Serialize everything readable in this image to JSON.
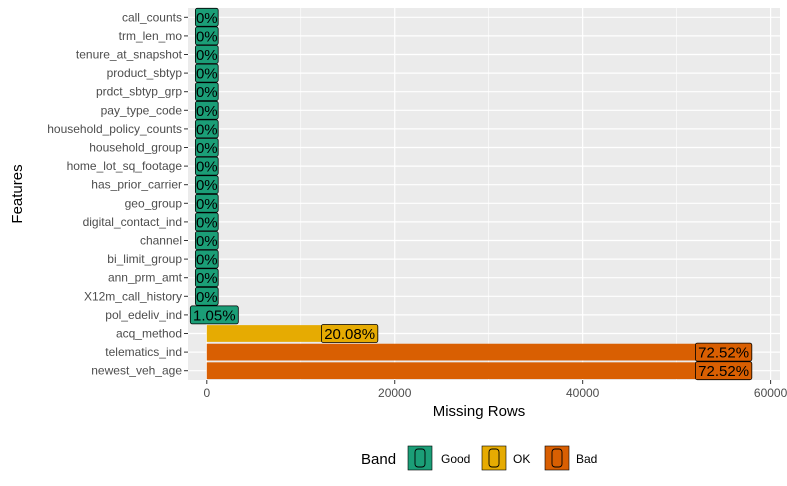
{
  "chart_data": {
    "type": "bar",
    "orientation": "horizontal",
    "xlabel": "Missing Rows",
    "ylabel": "Features",
    "xlim": [
      -2000,
      61000
    ],
    "x_ticks": [
      0,
      20000,
      40000,
      60000
    ],
    "x_tick_labels": [
      "0",
      "20000",
      "40000",
      "60000"
    ],
    "grid": true,
    "legend_position": "bottom",
    "legend_title": "Band",
    "bands": [
      {
        "name": "Good",
        "color": "#1B9E77"
      },
      {
        "name": "OK",
        "color": "#E6AB02"
      },
      {
        "name": "Bad",
        "color": "#D95F02"
      }
    ],
    "categories": [
      "call_counts",
      "trm_len_mo",
      "tenure_at_snapshot",
      "product_sbtyp",
      "prdct_sbtyp_grp",
      "pay_type_code",
      "household_policy_counts",
      "household_group",
      "home_lot_sq_footage",
      "has_prior_carrier",
      "geo_group",
      "digital_contact_ind",
      "channel",
      "bi_limit_group",
      "ann_prm_amt",
      "X12m_call_history",
      "pol_edeliv_ind",
      "acq_method",
      "telematics_ind",
      "newest_veh_age"
    ],
    "values": [
      0,
      0,
      0,
      0,
      0,
      0,
      0,
      0,
      0,
      0,
      0,
      0,
      0,
      0,
      0,
      0,
      800,
      15200,
      55000,
      55000
    ],
    "labels": [
      "0%",
      "0%",
      "0%",
      "0%",
      "0%",
      "0%",
      "0%",
      "0%",
      "0%",
      "0%",
      "0%",
      "0%",
      "0%",
      "0%",
      "0%",
      "0%",
      "1.05%",
      "20.08%",
      "72.52%",
      "72.52%"
    ],
    "band_of_each": [
      "Good",
      "Good",
      "Good",
      "Good",
      "Good",
      "Good",
      "Good",
      "Good",
      "Good",
      "Good",
      "Good",
      "Good",
      "Good",
      "Good",
      "Good",
      "Good",
      "Good",
      "OK",
      "Bad",
      "Bad"
    ]
  }
}
